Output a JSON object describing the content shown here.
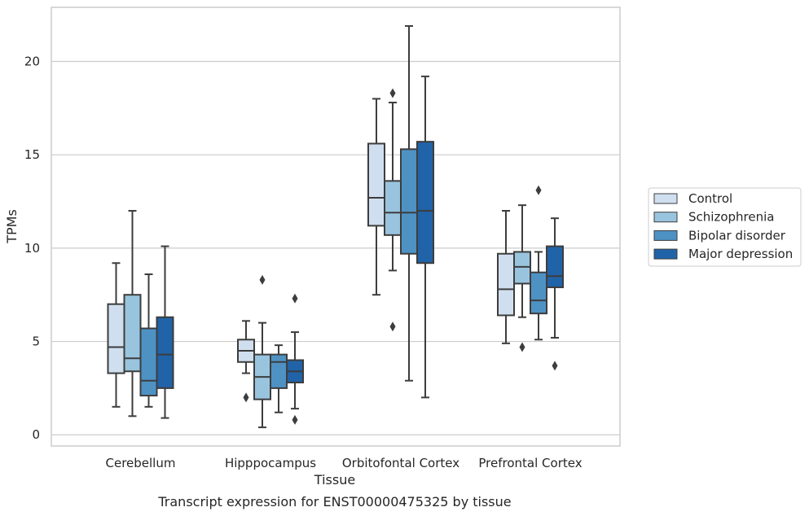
{
  "chart_data": {
    "type": "boxplot",
    "caption": "Transcript expression for ENST00000475325 by tissue",
    "xlabel": "Tissue",
    "ylabel": "TPMs",
    "ylim": [
      -0.6,
      22.9
    ],
    "yticks": [
      0,
      5,
      10,
      15,
      20
    ],
    "grid": true,
    "legend_position": "right",
    "categories": [
      "Cerebellum",
      "Hipppocampus",
      "Orbitofontal Cortex",
      "Prefrontal Cortex"
    ],
    "series": [
      {
        "name": "Control",
        "color": "#d0dfef",
        "boxes": [
          {
            "whislo": 1.5,
            "q1": 3.3,
            "med": 4.7,
            "q3": 7.0,
            "whishi": 9.2,
            "fliers": []
          },
          {
            "whislo": 3.3,
            "q1": 3.9,
            "med": 4.5,
            "q3": 5.1,
            "whishi": 6.1,
            "fliers": [
              2.0
            ]
          },
          {
            "whislo": 7.5,
            "q1": 11.2,
            "med": 12.7,
            "q3": 15.6,
            "whishi": 18.0,
            "fliers": []
          },
          {
            "whislo": 4.9,
            "q1": 6.4,
            "med": 7.8,
            "q3": 9.7,
            "whishi": 12.0,
            "fliers": []
          }
        ]
      },
      {
        "name": "Schizophrenia",
        "color": "#99c4de",
        "boxes": [
          {
            "whislo": 1.0,
            "q1": 3.4,
            "med": 4.1,
            "q3": 7.5,
            "whishi": 12.0,
            "fliers": []
          },
          {
            "whislo": 0.4,
            "q1": 1.9,
            "med": 3.1,
            "q3": 4.3,
            "whishi": 6.0,
            "fliers": [
              8.3
            ]
          },
          {
            "whislo": 8.8,
            "q1": 10.7,
            "med": 11.9,
            "q3": 13.6,
            "whishi": 17.8,
            "fliers": [
              18.3,
              5.8
            ]
          },
          {
            "whislo": 6.3,
            "q1": 8.1,
            "med": 9.0,
            "q3": 9.8,
            "whishi": 12.3,
            "fliers": [
              4.7
            ]
          }
        ]
      },
      {
        "name": "Bipolar disorder",
        "color": "#4e92c4",
        "boxes": [
          {
            "whislo": 1.5,
            "q1": 2.1,
            "med": 2.9,
            "q3": 5.7,
            "whishi": 8.6,
            "fliers": []
          },
          {
            "whislo": 1.2,
            "q1": 2.5,
            "med": 3.9,
            "q3": 4.3,
            "whishi": 4.8,
            "fliers": []
          },
          {
            "whislo": 2.9,
            "q1": 9.7,
            "med": 11.9,
            "q3": 15.3,
            "whishi": 21.9,
            "fliers": []
          },
          {
            "whislo": 5.1,
            "q1": 6.5,
            "med": 7.2,
            "q3": 8.7,
            "whishi": 9.8,
            "fliers": [
              13.1
            ]
          }
        ]
      },
      {
        "name": "Major depression",
        "color": "#2163a8",
        "boxes": [
          {
            "whislo": 0.9,
            "q1": 2.5,
            "med": 4.3,
            "q3": 6.3,
            "whishi": 10.1,
            "fliers": []
          },
          {
            "whislo": 1.4,
            "q1": 2.8,
            "med": 3.4,
            "q3": 4.0,
            "whishi": 5.5,
            "fliers": [
              7.3,
              0.8
            ]
          },
          {
            "whislo": 2.0,
            "q1": 9.2,
            "med": 12.0,
            "q3": 15.7,
            "whishi": 19.2,
            "fliers": []
          },
          {
            "whislo": 5.2,
            "q1": 7.9,
            "med": 8.5,
            "q3": 10.1,
            "whishi": 11.6,
            "fliers": [
              3.7
            ]
          }
        ]
      }
    ]
  }
}
